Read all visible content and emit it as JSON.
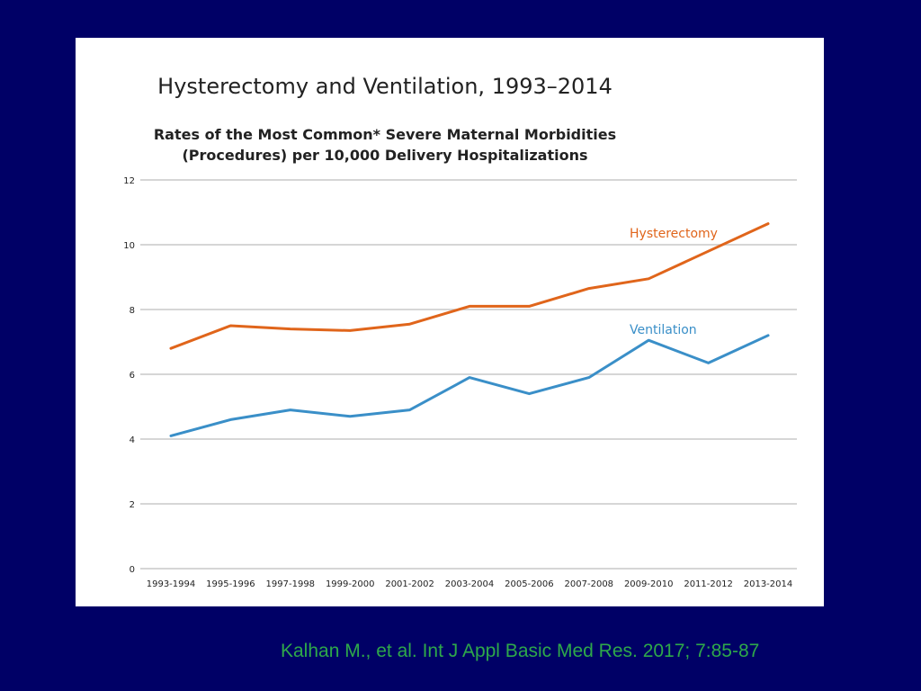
{
  "citation": "Kalhan M., et al. Int J Appl Basic Med Res. 2017; 7:85-87",
  "chart_data": {
    "type": "line",
    "title": "Hysterectomy and Ventilation, 1993–2014",
    "subtitle_line1": "Rates of the Most Common* Severe Maternal Morbidities",
    "subtitle_line2": "(Procedures) per 10,000 Delivery Hospitalizations",
    "xlabel": "",
    "ylabel": "",
    "ylim": [
      0,
      12
    ],
    "yticks": [
      0,
      2,
      4,
      6,
      8,
      10,
      12
    ],
    "grid": true,
    "categories": [
      "1993-1994",
      "1995-1996",
      "1997-1998",
      "1999-2000",
      "2001-2002",
      "2003-2004",
      "2005-2006",
      "2007-2008",
      "2009-2010",
      "2011-2012",
      "2013-2014"
    ],
    "series": [
      {
        "name": "Hysterectomy",
        "color": "#e0651b",
        "values": [
          6.8,
          7.5,
          7.4,
          7.35,
          7.55,
          8.1,
          8.1,
          8.65,
          8.95,
          9.8,
          10.65
        ]
      },
      {
        "name": "Ventilation",
        "color": "#3a8fc8",
        "values": [
          4.1,
          4.6,
          4.9,
          4.7,
          4.9,
          5.9,
          5.4,
          5.9,
          7.05,
          6.35,
          7.2
        ]
      }
    ]
  }
}
